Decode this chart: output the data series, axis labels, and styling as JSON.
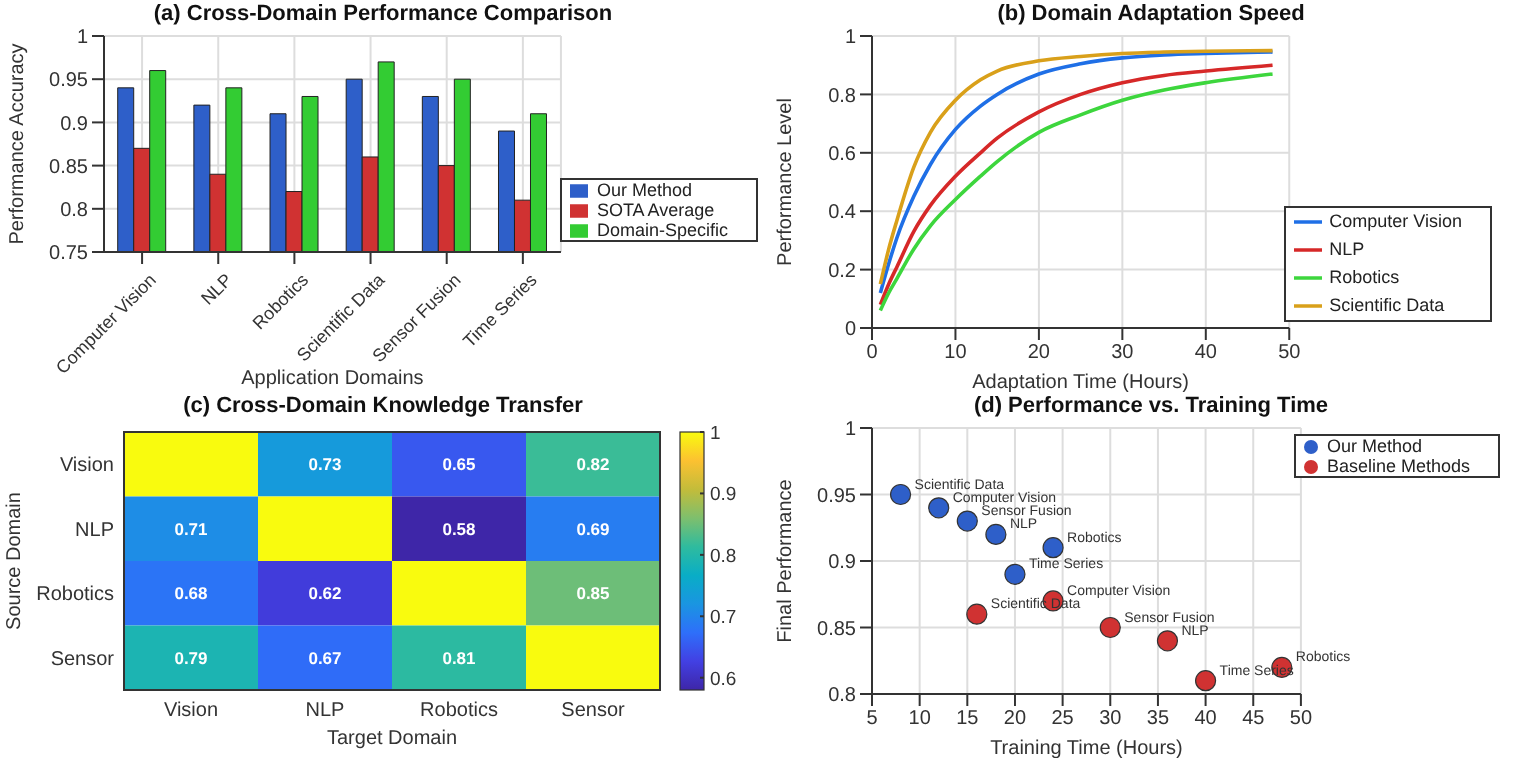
{
  "chart_data": [
    {
      "type": "bar",
      "title": "(a) Cross-Domain Performance Comparison",
      "xlabel": "Application Domains",
      "ylabel": "Performance Accuracy",
      "categories": [
        "Computer Vision",
        "NLP",
        "Robotics",
        "Scientific Data",
        "Sensor Fusion",
        "Time Series"
      ],
      "series": [
        {
          "name": "Our Method",
          "color": "#2e5fc9",
          "values": [
            0.94,
            0.92,
            0.91,
            0.95,
            0.93,
            0.89
          ]
        },
        {
          "name": "SOTA Average",
          "color": "#d03232",
          "values": [
            0.87,
            0.84,
            0.82,
            0.86,
            0.85,
            0.81
          ]
        },
        {
          "name": "Domain-Specific",
          "color": "#33cc33",
          "values": [
            0.96,
            0.94,
            0.93,
            0.97,
            0.95,
            0.91
          ]
        }
      ],
      "ylim": [
        0.75,
        1
      ],
      "yticks": [
        0.75,
        0.8,
        0.85,
        0.9,
        0.95,
        1
      ],
      "grid": true,
      "legend": "right"
    },
    {
      "type": "line",
      "title": "(b) Domain Adaptation Speed",
      "xlabel": "Adaptation Time (Hours)",
      "ylabel": "Performance Level",
      "x": [
        1,
        2,
        3,
        5,
        7,
        10,
        13,
        15,
        20,
        25,
        30,
        35,
        40,
        48
      ],
      "series": [
        {
          "name": "Computer Vision",
          "color": "#1f6fe6",
          "values": [
            0.12,
            0.22,
            0.31,
            0.45,
            0.56,
            0.68,
            0.76,
            0.8,
            0.87,
            0.905,
            0.925,
            0.935,
            0.94,
            0.945
          ]
        },
        {
          "name": "NLP",
          "color": "#d62828",
          "values": [
            0.08,
            0.15,
            0.21,
            0.33,
            0.42,
            0.52,
            0.6,
            0.65,
            0.74,
            0.8,
            0.84,
            0.865,
            0.88,
            0.9
          ]
        },
        {
          "name": "Robotics",
          "color": "#3dd63d",
          "values": [
            0.06,
            0.12,
            0.17,
            0.27,
            0.35,
            0.44,
            0.52,
            0.57,
            0.67,
            0.73,
            0.78,
            0.815,
            0.84,
            0.87
          ]
        },
        {
          "name": "Scientific Data",
          "color": "#d9a01a",
          "values": [
            0.15,
            0.27,
            0.37,
            0.55,
            0.67,
            0.78,
            0.85,
            0.88,
            0.915,
            0.93,
            0.94,
            0.945,
            0.948,
            0.95
          ]
        }
      ],
      "xlim": [
        0,
        50
      ],
      "xticks": [
        0,
        10,
        20,
        30,
        40,
        50
      ],
      "ylim": [
        0,
        1
      ],
      "yticks": [
        0,
        0.2,
        0.4,
        0.6,
        0.8,
        1
      ],
      "grid": true,
      "legend": "bottom right"
    },
    {
      "type": "heatmap",
      "title": "(c) Cross-Domain Knowledge Transfer",
      "xlabel": "Target Domain",
      "ylabel": "Source Domain",
      "categories": [
        "Vision",
        "NLP",
        "Robotics",
        "Sensor"
      ],
      "y_categories": [
        "Vision",
        "NLP",
        "Robotics",
        "Sensor"
      ],
      "cells": [
        [
          1,
          0.73,
          0.65,
          0.82
        ],
        [
          0.71,
          1,
          0.58,
          0.69
        ],
        [
          0.68,
          0.62,
          1,
          0.85
        ],
        [
          0.79,
          0.67,
          0.81,
          1
        ]
      ],
      "cell_labels": [
        [
          null,
          "0.73",
          "0.65",
          "0.82"
        ],
        [
          "0.71",
          null,
          "0.58",
          "0.69"
        ],
        [
          "0.68",
          "0.62",
          null,
          "0.85"
        ],
        [
          "0.79",
          "0.67",
          "0.81",
          null
        ]
      ],
      "clim": [
        0.58,
        1
      ],
      "cticks": [
        0.6,
        0.7,
        0.8,
        0.9,
        1
      ]
    },
    {
      "type": "scatter",
      "title": "(d) Performance vs. Training Time",
      "xlabel": "Training Time (Hours)",
      "ylabel": "Final Performance",
      "series": [
        {
          "name": "Our Method",
          "color": "#2e5fc9",
          "x": [
            8,
            12,
            15,
            18,
            24,
            20
          ],
          "values": [
            0.95,
            0.94,
            0.93,
            0.92,
            0.91,
            0.89
          ]
        },
        {
          "name": "Baseline Methods",
          "color": "#d03232",
          "x": [
            16,
            24,
            30,
            36,
            40,
            48
          ],
          "values": [
            0.86,
            0.87,
            0.85,
            0.84,
            0.81,
            0.82
          ]
        }
      ],
      "annotations": [
        {
          "text": "Scientific Data",
          "x": 8,
          "y": 0.95
        },
        {
          "text": "Computer Vision",
          "x": 12,
          "y": 0.94
        },
        {
          "text": "Sensor Fusion",
          "x": 15,
          "y": 0.93
        },
        {
          "text": "NLP",
          "x": 18,
          "y": 0.92
        },
        {
          "text": "Robotics",
          "x": 24,
          "y": 0.91
        },
        {
          "text": "Time Series",
          "x": 20,
          "y": 0.89
        },
        {
          "text": "Scientific Data",
          "x": 16,
          "y": 0.86
        },
        {
          "text": "Computer Vision",
          "x": 24,
          "y": 0.87
        },
        {
          "text": "Sensor Fusion",
          "x": 30,
          "y": 0.85
        },
        {
          "text": "NLP",
          "x": 36,
          "y": 0.84
        },
        {
          "text": "Time Series",
          "x": 40,
          "y": 0.81
        },
        {
          "text": "Robotics",
          "x": 48,
          "y": 0.82
        }
      ],
      "xlim": [
        5,
        50
      ],
      "xticks": [
        5,
        10,
        15,
        20,
        25,
        30,
        35,
        40,
        45,
        50
      ],
      "ylim": [
        0.8,
        1
      ],
      "yticks": [
        0.8,
        0.85,
        0.9,
        0.95,
        1
      ],
      "grid": true,
      "legend": "top right",
      "marker": "circle"
    }
  ]
}
